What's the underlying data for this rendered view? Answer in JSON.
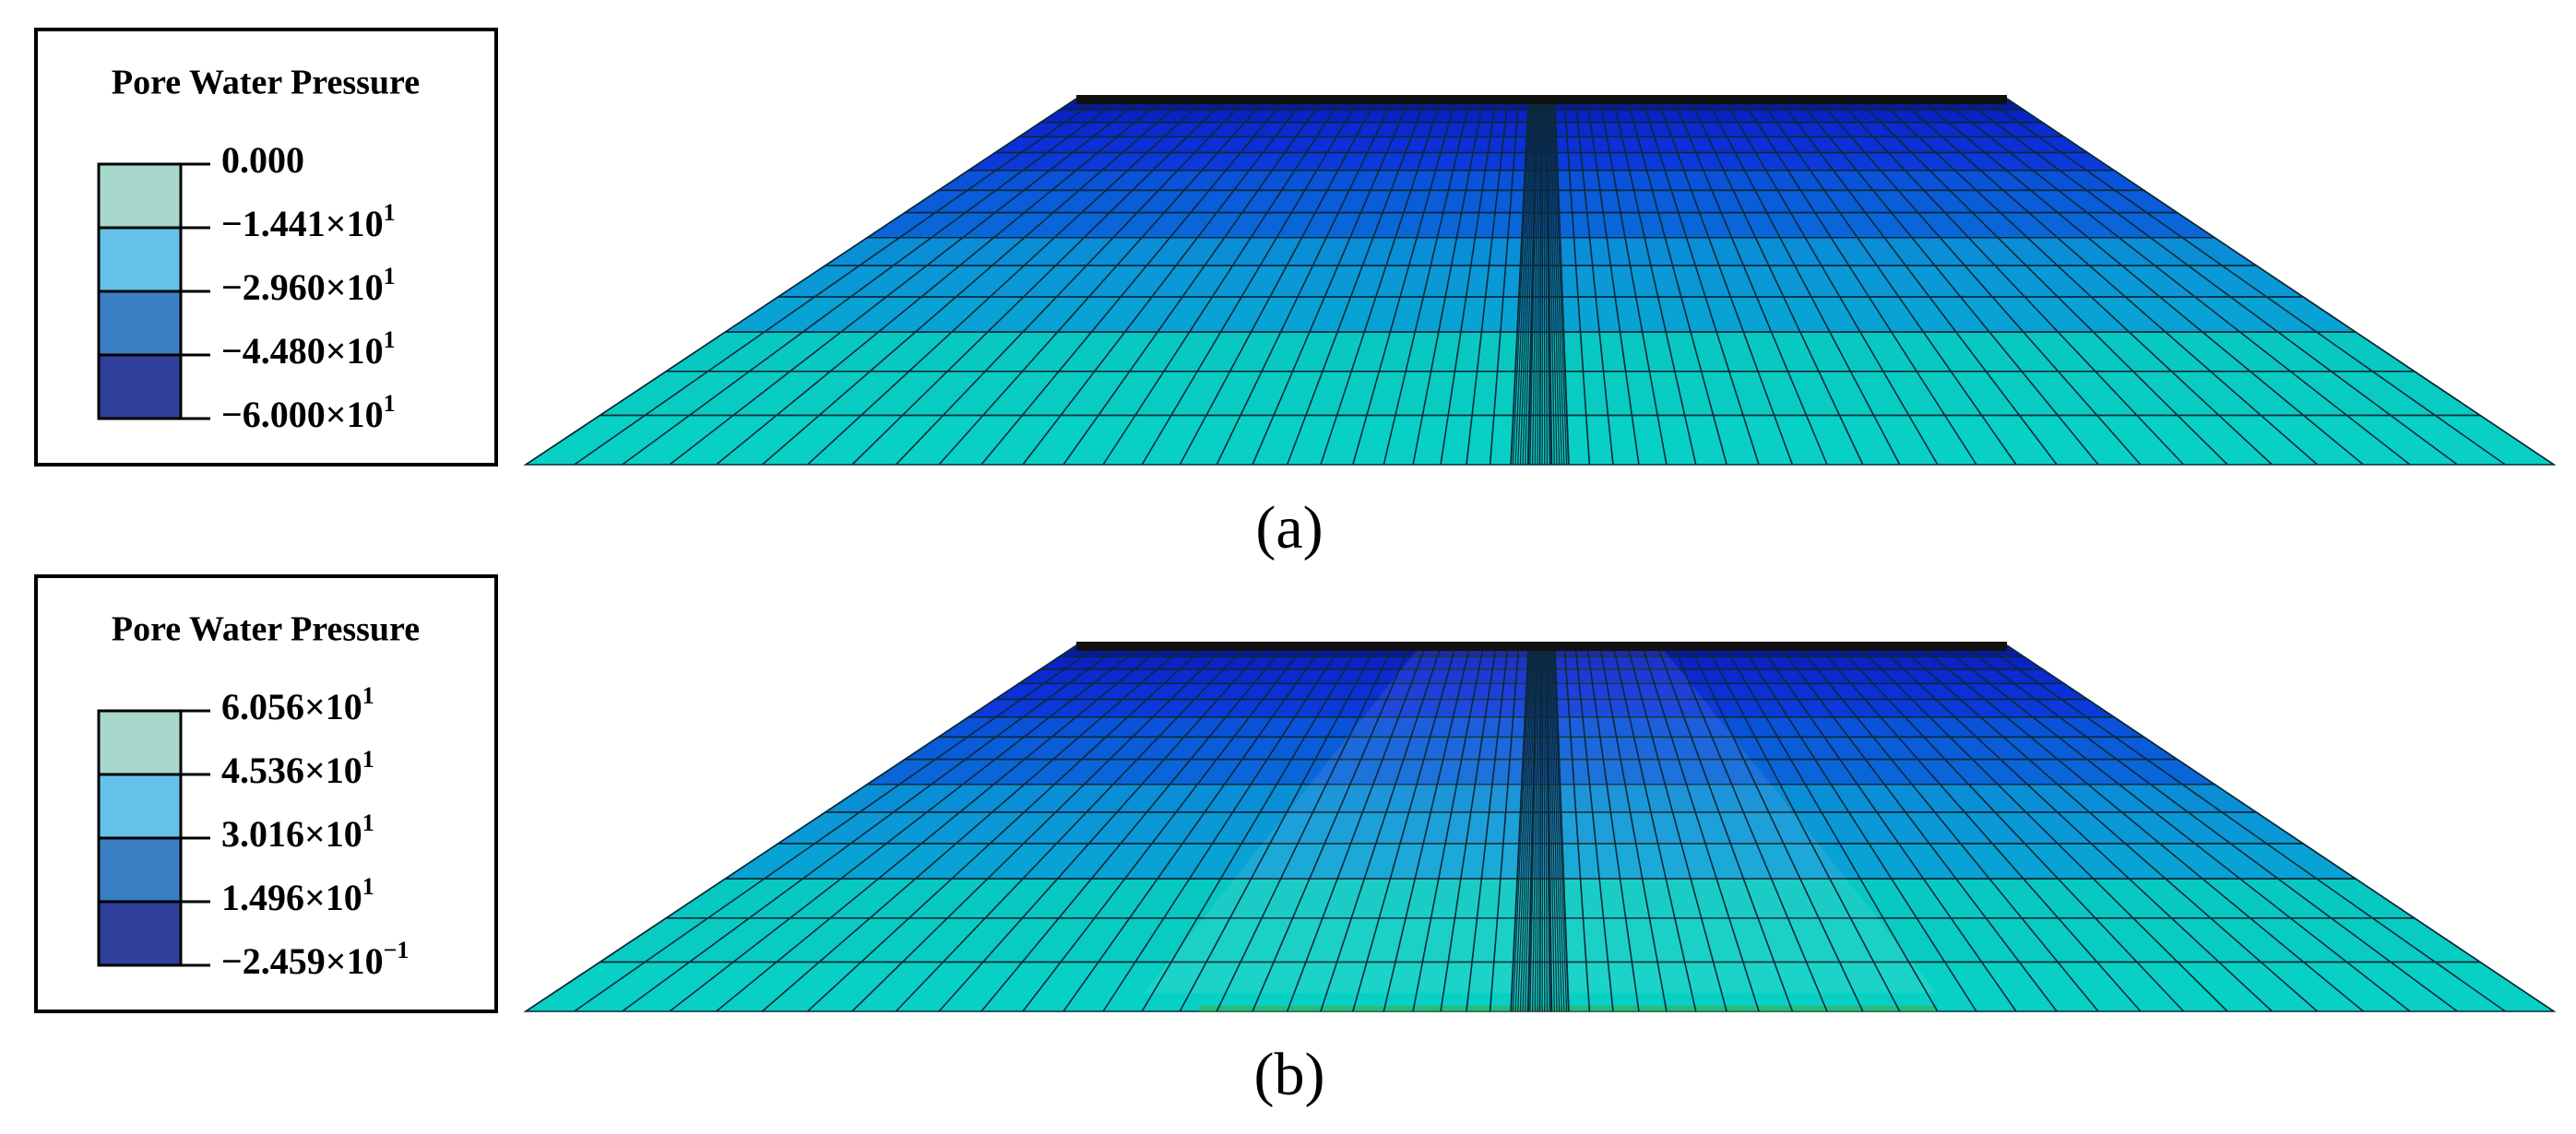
{
  "panels": [
    {
      "legend": {
        "title": "Pore Water Pressure",
        "labels": [
          {
            "base": "0.000"
          },
          {
            "base": "−1.441×10",
            "exp": "1"
          },
          {
            "base": "−2.960×10",
            "exp": "1"
          },
          {
            "base": "−4.480×10",
            "exp": "1"
          },
          {
            "base": "−6.000×10",
            "exp": "1"
          }
        ]
      },
      "caption": "(a)"
    },
    {
      "legend": {
        "title": "Pore Water Pressure",
        "labels": [
          {
            "base": "6.056×10",
            "exp": "1"
          },
          {
            "base": "4.536×10",
            "exp": "1"
          },
          {
            "base": "3.016×10",
            "exp": "1"
          },
          {
            "base": "1.496×10",
            "exp": "1"
          },
          {
            "base": "−2.459×10",
            "exp": "−1"
          }
        ]
      },
      "caption": "(b)"
    }
  ]
}
